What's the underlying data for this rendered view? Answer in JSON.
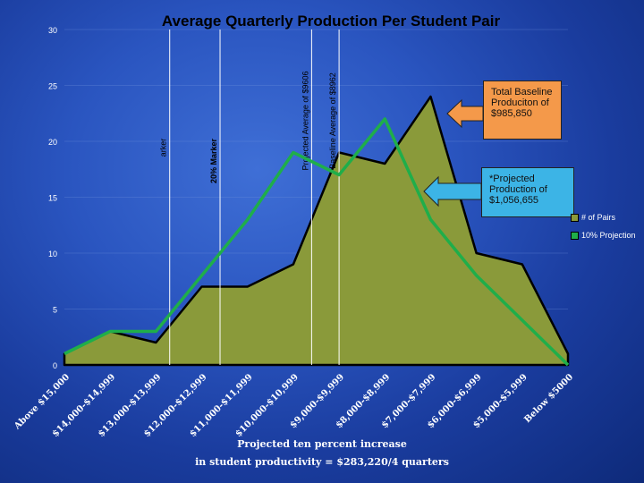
{
  "chart_data": {
    "type": "area",
    "title": "Average Quarterly Production Per Student Pair",
    "categories": [
      "Above $15,000",
      "$14,000-$14,999",
      "$13,000-$13,999",
      "$12,000-$12,999",
      "$11,000-$11,999",
      "$10,000-$10,999",
      "$9,000-$9,999",
      "$8,000-$8,999",
      "$7,000-$7,999",
      "$6,000-$6,999",
      "$5,000-$5,999",
      "Below $5000"
    ],
    "series": [
      {
        "name": "# of Pairs",
        "type": "area",
        "color": "#8a9a3a",
        "values": [
          1,
          3,
          2,
          7,
          7,
          9,
          19,
          18,
          24,
          10,
          9,
          1
        ]
      },
      {
        "name": "10% Projection",
        "type": "line",
        "color": "#1fae4a",
        "values": [
          1,
          3,
          3,
          8,
          13,
          19,
          17,
          22,
          13,
          8,
          4,
          0
        ]
      }
    ],
    "ylim": [
      0,
      30
    ],
    "yticks": [
      0,
      5,
      10,
      15,
      20,
      25,
      30
    ],
    "legend_position": "right",
    "markers": [
      {
        "label": "arker",
        "category_index": 2.3
      },
      {
        "label": "20% Marker",
        "category_index": 3.4
      },
      {
        "label": "Projected Average of $9606",
        "category_index": 5.4
      },
      {
        "label": "Baseline Average of $8962",
        "category_index": 6.0
      }
    ],
    "callouts": {
      "baseline": "Total Baseline Produciton of $985,850",
      "projected": "*Projected Production of $1,056,655"
    },
    "footer": [
      "Projected ten percent increase",
      "in student productivity = $283,220/4 quarters"
    ]
  }
}
